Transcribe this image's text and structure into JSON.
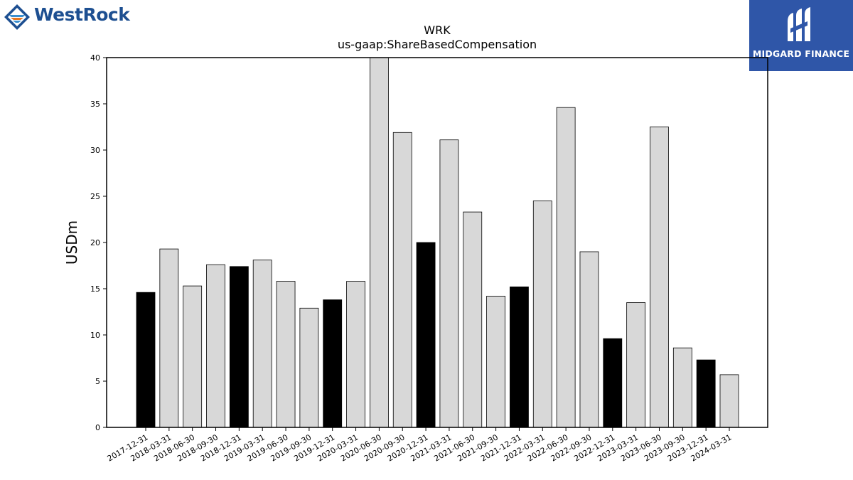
{
  "logos": {
    "left": {
      "text": "WestRock",
      "icon": "westrock-diamond-icon",
      "color": "#1d4f91",
      "accent": "#e87722"
    },
    "right": {
      "text": "MIDGARD FINANCE",
      "icon": "midgard-m-icon",
      "background": "#2f56a8"
    }
  },
  "chart_data": {
    "type": "bar",
    "title": "WRK",
    "subtitle": "us-gaap:ShareBasedCompensation",
    "xlabel": "",
    "ylabel": "USDm",
    "ylim": [
      0,
      40
    ],
    "yticks": [
      0,
      5,
      10,
      15,
      20,
      25,
      30,
      35,
      40
    ],
    "grid": false,
    "colors": {
      "annual": "#000000",
      "quarter": "#d8d8d8",
      "edge": "#000000"
    },
    "categories": [
      "2017-12-31",
      "2018-03-31",
      "2018-06-30",
      "2018-09-30",
      "2018-12-31",
      "2019-03-31",
      "2019-06-30",
      "2019-09-30",
      "2019-12-31",
      "2020-03-31",
      "2020-06-30",
      "2020-09-30",
      "2020-12-31",
      "2021-03-31",
      "2021-06-30",
      "2021-09-30",
      "2021-12-31",
      "2022-03-31",
      "2022-06-30",
      "2022-09-30",
      "2022-12-31",
      "2023-03-31",
      "2023-06-30",
      "2023-09-30",
      "2023-12-31",
      "2024-03-31"
    ],
    "values": [
      14.6,
      19.3,
      15.3,
      17.6,
      17.4,
      18.1,
      15.8,
      12.9,
      13.8,
      15.8,
      40.6,
      31.9,
      20.0,
      31.1,
      23.3,
      14.2,
      15.2,
      24.5,
      34.6,
      19.0,
      9.6,
      13.5,
      32.5,
      8.6,
      7.3,
      5.7
    ],
    "highlight": [
      true,
      false,
      false,
      false,
      true,
      false,
      false,
      false,
      true,
      false,
      false,
      false,
      true,
      false,
      false,
      false,
      true,
      false,
      false,
      false,
      true,
      false,
      false,
      false,
      true,
      false
    ]
  }
}
